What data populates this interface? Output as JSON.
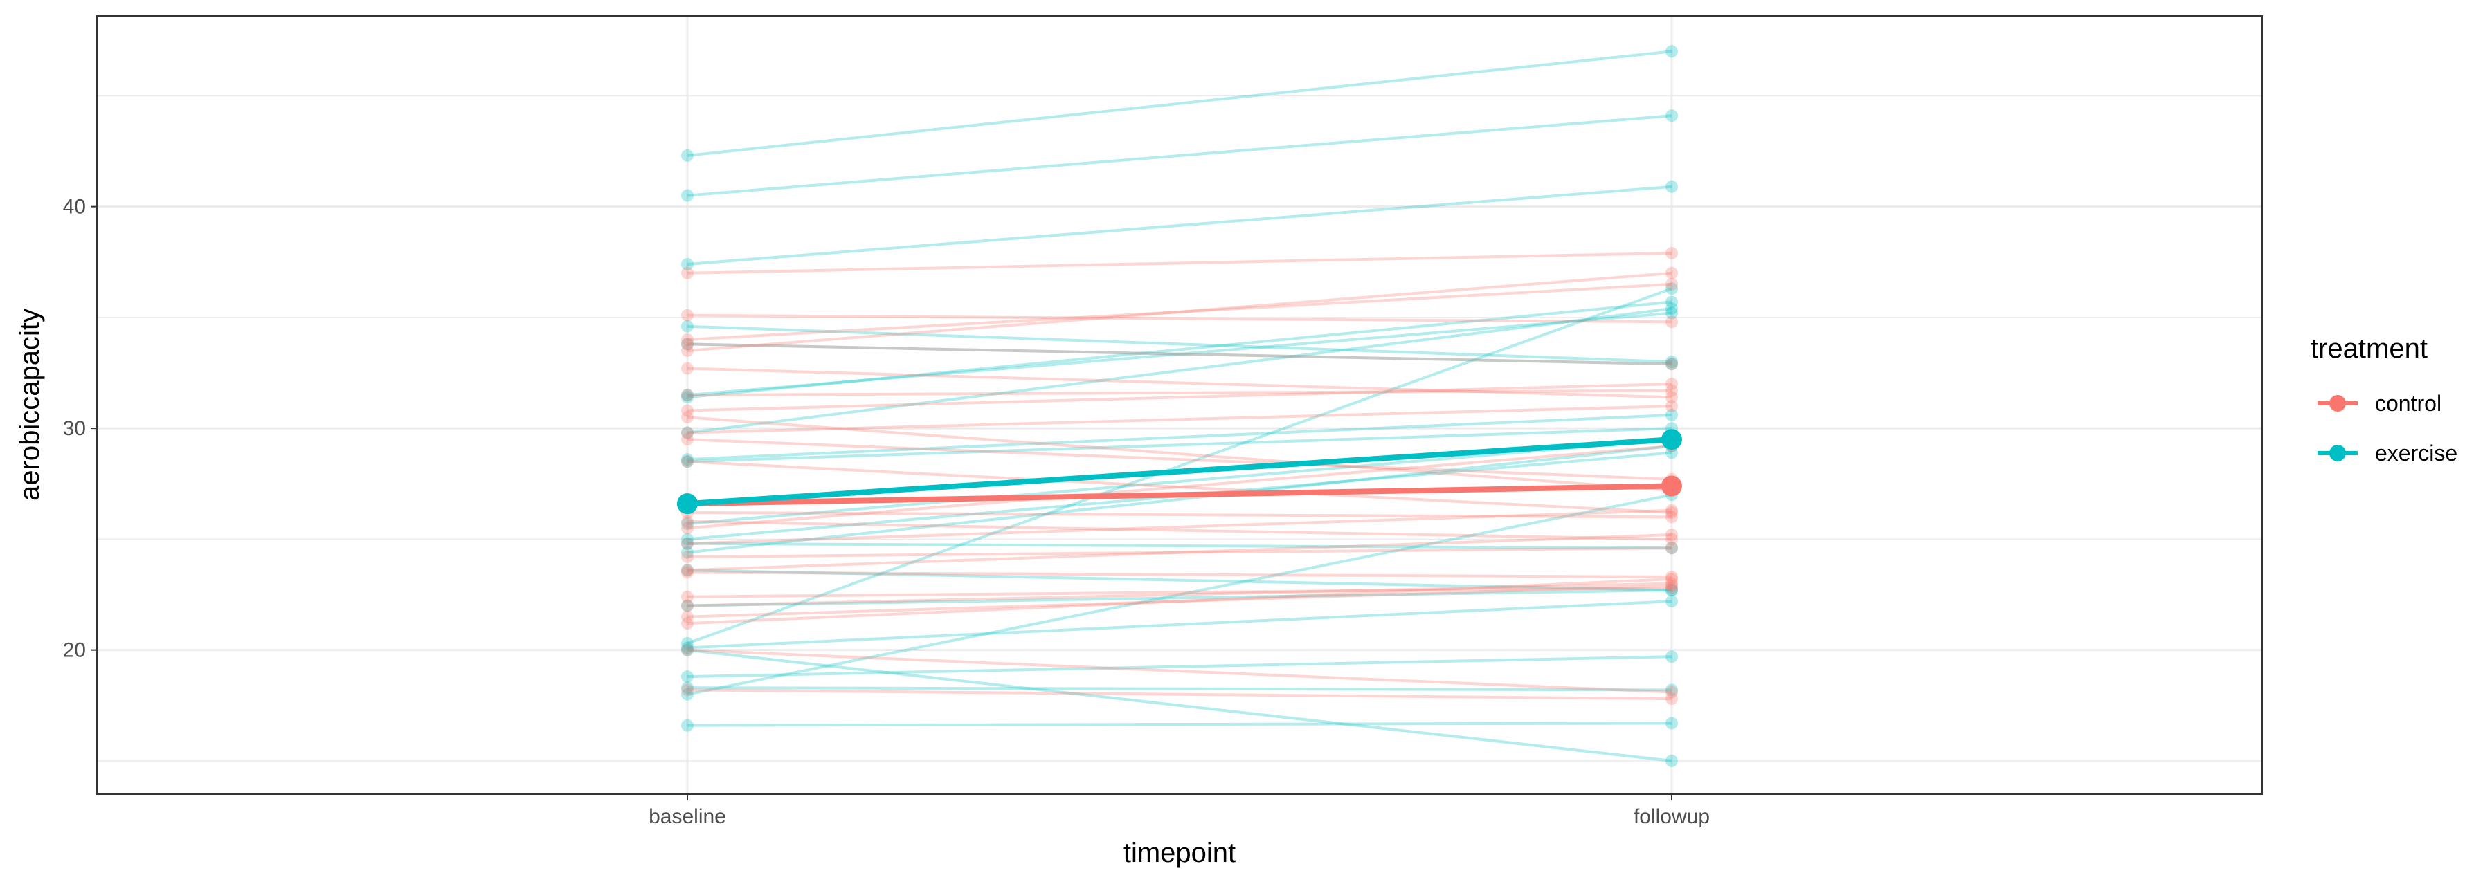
{
  "chart_data": {
    "type": "line",
    "xlabel": "timepoint",
    "ylabel": "aerobiccapacity",
    "categories": [
      "baseline",
      "followup"
    ],
    "ylim": [
      13.5,
      48.6
    ],
    "yticks": [
      20,
      30,
      40
    ],
    "grid": true,
    "legend": {
      "title": "treatment",
      "placement": "right",
      "entries": [
        {
          "label": "control",
          "color": "#F8766D"
        },
        {
          "label": "exercise",
          "color": "#00BFC4"
        }
      ]
    },
    "individual_lines": [
      {
        "treatment": "exercise",
        "values": [
          42.3,
          47.0
        ]
      },
      {
        "treatment": "exercise",
        "values": [
          40.5,
          44.1
        ]
      },
      {
        "treatment": "exercise",
        "values": [
          37.4,
          40.9
        ]
      },
      {
        "treatment": "exercise",
        "values": [
          34.6,
          33.0
        ]
      },
      {
        "treatment": "exercise",
        "values": [
          31.4,
          35.7
        ]
      },
      {
        "treatment": "exercise",
        "values": [
          29.8,
          35.4
        ]
      },
      {
        "treatment": "exercise",
        "values": [
          28.6,
          30.6
        ]
      },
      {
        "treatment": "exercise",
        "values": [
          25.0,
          28.9
        ]
      },
      {
        "treatment": "exercise",
        "values": [
          24.4,
          29.2
        ]
      },
      {
        "treatment": "exercise",
        "values": [
          20.3,
          36.3
        ]
      },
      {
        "treatment": "exercise",
        "values": [
          20.1,
          22.2
        ]
      },
      {
        "treatment": "exercise",
        "values": [
          18.8,
          19.7
        ]
      },
      {
        "treatment": "exercise",
        "values": [
          18.0,
          27.0
        ]
      },
      {
        "treatment": "exercise",
        "values": [
          20.0,
          15.0
        ]
      },
      {
        "treatment": "exercise",
        "values": [
          16.6,
          16.7
        ]
      },
      {
        "treatment": "exercise",
        "values": [
          33.8,
          32.9
        ]
      },
      {
        "treatment": "exercise",
        "values": [
          31.5,
          35.2
        ]
      },
      {
        "treatment": "exercise",
        "values": [
          28.5,
          30.0
        ]
      },
      {
        "treatment": "exercise",
        "values": [
          25.7,
          29.5
        ]
      },
      {
        "treatment": "exercise",
        "values": [
          24.8,
          24.6
        ]
      },
      {
        "treatment": "exercise",
        "values": [
          23.6,
          22.7
        ]
      },
      {
        "treatment": "exercise",
        "values": [
          22.0,
          22.7
        ]
      },
      {
        "treatment": "exercise",
        "values": [
          18.3,
          18.2
        ]
      },
      {
        "treatment": "control",
        "values": [
          37.0,
          37.9
        ]
      },
      {
        "treatment": "control",
        "values": [
          35.1,
          34.8
        ]
      },
      {
        "treatment": "control",
        "values": [
          34.0,
          36.5
        ]
      },
      {
        "treatment": "control",
        "values": [
          33.8,
          32.9
        ]
      },
      {
        "treatment": "control",
        "values": [
          33.5,
          37.0
        ]
      },
      {
        "treatment": "control",
        "values": [
          32.7,
          31.4
        ]
      },
      {
        "treatment": "control",
        "values": [
          31.5,
          31.7
        ]
      },
      {
        "treatment": "control",
        "values": [
          30.8,
          32.0
        ]
      },
      {
        "treatment": "control",
        "values": [
          30.5,
          27.2
        ]
      },
      {
        "treatment": "control",
        "values": [
          29.8,
          31.0
        ]
      },
      {
        "treatment": "control",
        "values": [
          29.5,
          27.7
        ]
      },
      {
        "treatment": "control",
        "values": [
          28.5,
          26.2
        ]
      },
      {
        "treatment": "control",
        "values": [
          26.2,
          26.0
        ]
      },
      {
        "treatment": "control",
        "values": [
          25.8,
          25.0
        ]
      },
      {
        "treatment": "control",
        "values": [
          25.5,
          29.2
        ]
      },
      {
        "treatment": "control",
        "values": [
          24.8,
          26.3
        ]
      },
      {
        "treatment": "control",
        "values": [
          24.2,
          24.6
        ]
      },
      {
        "treatment": "control",
        "values": [
          23.6,
          25.2
        ]
      },
      {
        "treatment": "control",
        "values": [
          23.5,
          23.3
        ]
      },
      {
        "treatment": "control",
        "values": [
          22.4,
          22.8
        ]
      },
      {
        "treatment": "control",
        "values": [
          22.0,
          23.0
        ]
      },
      {
        "treatment": "control",
        "values": [
          21.5,
          22.9
        ]
      },
      {
        "treatment": "control",
        "values": [
          21.2,
          23.2
        ]
      },
      {
        "treatment": "control",
        "values": [
          20.0,
          18.1
        ]
      },
      {
        "treatment": "control",
        "values": [
          18.2,
          17.8
        ]
      }
    ],
    "series": [
      {
        "name": "control",
        "color": "#F8766D",
        "values": [
          26.6,
          27.4
        ]
      },
      {
        "name": "exercise",
        "color": "#00BFC4",
        "values": [
          26.6,
          29.5
        ]
      }
    ]
  }
}
